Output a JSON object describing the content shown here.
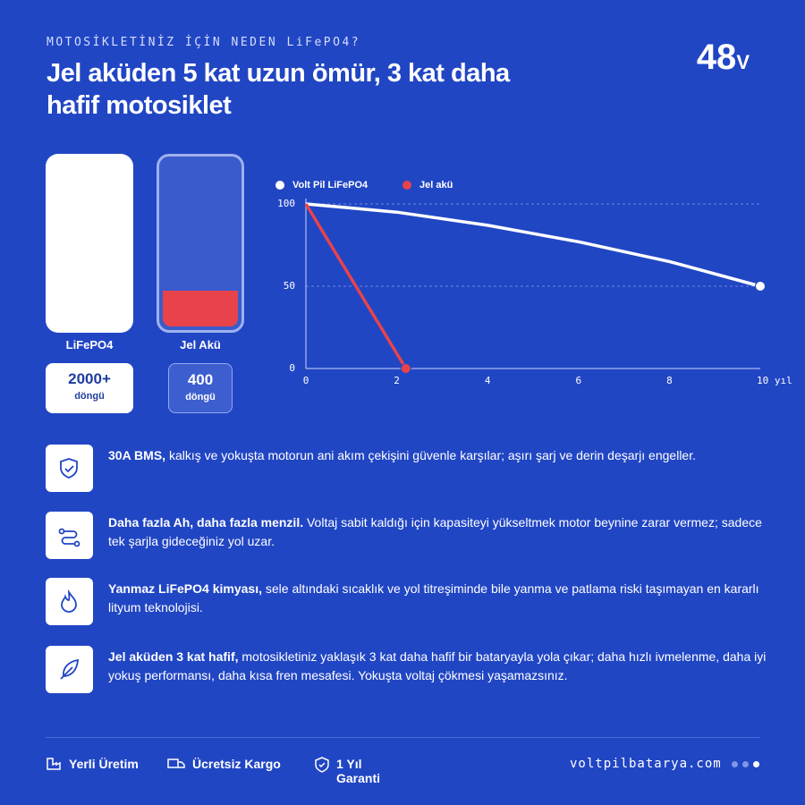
{
  "header": {
    "eyebrow": "MOTOSİKLETİNİZ İÇİN NEDEN LiFePO4?",
    "title": "Jel aküden 5 kat uzun ömür, 3 kat daha hafif motosiklet",
    "badge": "48",
    "badge_unit": "V"
  },
  "batteries": [
    {
      "label": "LiFePO4",
      "cycles": "2000+",
      "cycles_unit": "döngü"
    },
    {
      "label": "Jel Akü",
      "cycles": "400",
      "cycles_unit": "döngü"
    }
  ],
  "chart_data": {
    "type": "line",
    "series": [
      {
        "name": "Volt Pil LiFePO4",
        "color": "#ffffff",
        "x": [
          0,
          2,
          4,
          6,
          8,
          10
        ],
        "values": [
          100,
          95,
          87,
          77,
          65,
          50
        ]
      },
      {
        "name": "Jel akü",
        "color": "#e8434a",
        "x": [
          0,
          2.2
        ],
        "values": [
          100,
          0
        ]
      }
    ],
    "xlim": [
      0,
      10
    ],
    "xticks": [
      0,
      2,
      4,
      6,
      8,
      {
        "value": 10,
        "label": "10 yıl"
      }
    ],
    "ylim": [
      0,
      100
    ],
    "yticks": [
      0,
      50,
      100
    ],
    "grid": true,
    "legend": "top-left"
  },
  "features": [
    {
      "bold": "30A BMS,",
      "text": "kalkış ve yokuşta motorun ani akım çekişini güvenle karşılar; aşırı şarj ve derin deşarjı engeller."
    },
    {
      "bold": "Daha fazla Ah, daha fazla menzil.",
      "text": "Voltaj sabit kaldığı için kapasiteyi yükseltmek motor beynine zarar vermez; sadece tek şarjla gideceğiniz yol uzar."
    },
    {
      "bold": "Yanmaz LiFePO4 kimyası,",
      "text": "sele altındaki sıcaklık ve yol titreşiminde bile yanma ve patlama riski taşımayan en kararlı lityum teknolojisi."
    },
    {
      "bold": "Jel aküden 3 kat hafif,",
      "text": "motosikletiniz yaklaşık 3 kat daha hafif bir bataryayla yola çıkar; daha hızlı ivmelenme, daha iyi yokuş performansı, daha kısa fren mesafesi. Yokuşta voltaj çökmesi yaşamazsınız."
    }
  ],
  "footer": {
    "items": [
      "Yerli Üretim",
      "Ücretsiz Kargo",
      "1 Yıl Garanti"
    ],
    "site": "voltpilbatarya.com"
  }
}
